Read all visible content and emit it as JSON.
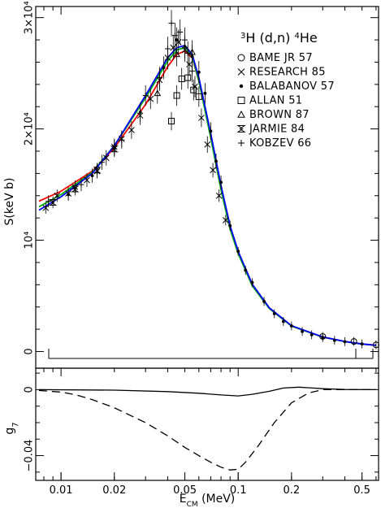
{
  "chart_data": [
    {
      "type": "scatter",
      "panel": "top",
      "title": "³H (d,n) ⁴He",
      "title_parts": {
        "pre": "3",
        "a": "H (d,n) ",
        "sup": "4",
        "b": "He"
      },
      "ylabel": "S(keV b)",
      "xlabel": "",
      "xscale": "log",
      "xlim": [
        0.0072,
        0.62
      ],
      "ylim": [
        -1500,
        31000
      ],
      "y_ticks": [
        {
          "value": 0,
          "label": "0"
        },
        {
          "value": 10000,
          "label": "10⁴"
        },
        {
          "value": 20000,
          "label": "2×10⁴"
        },
        {
          "value": 30000,
          "label": "3×10⁴"
        }
      ],
      "legend_position": "top-right",
      "legend": [
        {
          "symbol": "circle",
          "label": "BAME JR 57"
        },
        {
          "symbol": "cross",
          "label": "RESEARCH 85"
        },
        {
          "symbol": "dot",
          "label": "BALABANOV 57"
        },
        {
          "symbol": "square",
          "label": "ALLAN 51"
        },
        {
          "symbol": "triangle",
          "label": "BROWN 87"
        },
        {
          "symbol": "hourglass",
          "label": "JARMIE 84"
        },
        {
          "symbol": "plus",
          "label": "KOBZEV 66"
        }
      ],
      "series": [
        {
          "name": "",
          "color": "#ff0000",
          "x": [
            0.0075,
            0.01,
            0.015,
            0.02,
            0.03,
            0.04,
            0.045,
            0.05,
            0.055,
            0.06,
            0.07,
            0.08,
            0.09,
            0.1,
            0.12,
            0.15,
            0.2,
            0.3,
            0.4,
            0.5,
            0.6
          ],
          "y": [
            13500,
            14400,
            16200,
            18300,
            22200,
            25600,
            26700,
            27000,
            26400,
            24300,
            19400,
            14700,
            11200,
            8900,
            6000,
            3900,
            2300,
            1300,
            900,
            680,
            560
          ]
        },
        {
          "name": "",
          "color": "#00b000",
          "x": [
            0.0075,
            0.01,
            0.015,
            0.02,
            0.03,
            0.04,
            0.045,
            0.05,
            0.055,
            0.06,
            0.07,
            0.08,
            0.09,
            0.1,
            0.12,
            0.15,
            0.2,
            0.3,
            0.4,
            0.5,
            0.6
          ],
          "y": [
            13000,
            14100,
            16100,
            18500,
            22800,
            26100,
            27100,
            27300,
            26500,
            24300,
            19200,
            14500,
            11000,
            8800,
            5900,
            3850,
            2280,
            1290,
            890,
            670,
            550
          ]
        },
        {
          "name": "",
          "color": "#0000ff",
          "x": [
            0.0075,
            0.01,
            0.015,
            0.02,
            0.03,
            0.04,
            0.045,
            0.05,
            0.055,
            0.06,
            0.07,
            0.08,
            0.09,
            0.1,
            0.12,
            0.15,
            0.2,
            0.3,
            0.4,
            0.5,
            0.6
          ],
          "y": [
            12700,
            13900,
            16000,
            18500,
            23000,
            26400,
            27300,
            27500,
            26700,
            24600,
            19600,
            14900,
            11300,
            9000,
            6050,
            3920,
            2320,
            1310,
            900,
            680,
            560
          ]
        }
      ],
      "points": [
        {
          "symbol": "circle",
          "x": [
            0.3,
            0.45,
            0.6
          ],
          "y": [
            1350,
            900,
            600
          ]
        },
        {
          "symbol": "cross",
          "x": [
            0.0082,
            0.0095,
            0.011,
            0.012,
            0.014,
            0.016,
            0.018,
            0.02,
            0.022,
            0.025,
            0.028,
            0.032,
            0.036,
            0.04,
            0.043,
            0.046,
            0.05,
            0.053,
            0.057,
            0.062,
            0.067,
            0.072,
            0.078,
            0.085
          ],
          "y": [
            12900,
            14000,
            14200,
            14800,
            15400,
            16200,
            17400,
            18400,
            19100,
            19900,
            21200,
            22700,
            24400,
            26400,
            27300,
            27800,
            27100,
            25800,
            23800,
            21000,
            18600,
            16300,
            14000,
            11800
          ]
        },
        {
          "symbol": "dot",
          "x": [
            0.011,
            0.015,
            0.02,
            0.028,
            0.038,
            0.045,
            0.05,
            0.055,
            0.06,
            0.065,
            0.07,
            0.075,
            0.08,
            0.09,
            0.1,
            0.11,
            0.12,
            0.14,
            0.16,
            0.18,
            0.2,
            0.23,
            0.26,
            0.3,
            0.35,
            0.4,
            0.5
          ],
          "y": [
            14100,
            15800,
            18300,
            21500,
            25500,
            28000,
            27400,
            26500,
            25100,
            23200,
            19800,
            17100,
            15200,
            11300,
            9000,
            7300,
            6200,
            4500,
            3400,
            2700,
            2300,
            1800,
            1500,
            1250,
            1000,
            880,
            680
          ]
        },
        {
          "symbol": "square",
          "x": [
            0.042,
            0.045,
            0.048,
            0.052,
            0.056,
            0.06
          ],
          "y": [
            20700,
            23000,
            24500,
            24600,
            23500,
            22900
          ]
        },
        {
          "symbol": "triangle",
          "x": [
            0.035,
            0.045,
            0.055
          ],
          "y": [
            23200,
            26700,
            26900
          ]
        },
        {
          "symbol": "hourglass",
          "x": [
            0.009,
            0.012,
            0.016,
            0.02
          ],
          "y": [
            13400,
            14600,
            16300,
            18200
          ]
        },
        {
          "symbol": "plus",
          "x": [
            0.0085,
            0.013,
            0.017,
            0.022,
            0.03,
            0.036,
            0.04,
            0.042,
            0.044,
            0.047,
            0.05,
            0.052,
            0.055
          ],
          "y": [
            13500,
            15000,
            17000,
            19000,
            23000,
            24600,
            27200,
            29500,
            28400,
            28700,
            28000,
            26800,
            25200
          ]
        }
      ]
    },
    {
      "type": "line",
      "panel": "bottom",
      "ylabel": "g₇",
      "ylabel_parts": {
        "main": "g",
        "sub": "7"
      },
      "xlabel": "E_CM (MeV)",
      "xlabel_parts": {
        "main": "E",
        "sub": "CM",
        "unit": " (MeV)"
      },
      "xscale": "log",
      "xlim": [
        0.0072,
        0.62
      ],
      "ylim": [
        -0.055,
        0.013
      ],
      "x_ticks": [
        {
          "value": 0.01,
          "label": "0.01"
        },
        {
          "value": 0.02,
          "label": "0.02"
        },
        {
          "value": 0.05,
          "label": "0.05"
        },
        {
          "value": 0.1,
          "label": "0.1"
        },
        {
          "value": 0.2,
          "label": "0.2"
        },
        {
          "value": 0.5,
          "label": "0.5"
        }
      ],
      "y_ticks": [
        {
          "value": 0,
          "label": "0"
        },
        {
          "value": -0.04,
          "label": "−0.04"
        }
      ],
      "series": [
        {
          "name": "",
          "style": "solid",
          "x": [
            0.0075,
            0.02,
            0.04,
            0.06,
            0.08,
            0.1,
            0.12,
            0.15,
            0.18,
            0.22,
            0.3,
            0.4,
            0.6
          ],
          "y": [
            0,
            -0.0003,
            -0.0012,
            -0.0022,
            -0.0032,
            -0.0038,
            -0.0028,
            -0.001,
            0.001,
            0.0015,
            0.0006,
            0.0001,
            0
          ]
        },
        {
          "name": "",
          "style": "dashed",
          "x": [
            0.0075,
            0.01,
            0.012,
            0.015,
            0.02,
            0.03,
            0.04,
            0.05,
            0.06,
            0.07,
            0.08,
            0.09,
            0.1,
            0.11,
            0.13,
            0.16,
            0.2,
            0.25,
            0.3,
            0.4,
            0.6
          ],
          "y": [
            -0.0005,
            -0.0015,
            -0.003,
            -0.006,
            -0.011,
            -0.02,
            -0.028,
            -0.035,
            -0.04,
            -0.044,
            -0.047,
            -0.0487,
            -0.0483,
            -0.044,
            -0.034,
            -0.02,
            -0.008,
            -0.002,
            0,
            0,
            0
          ]
        }
      ]
    }
  ]
}
